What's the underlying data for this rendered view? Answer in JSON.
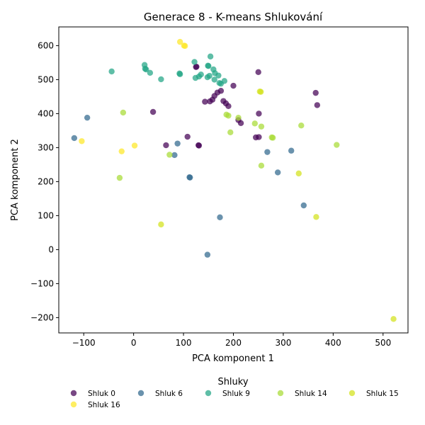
{
  "chart_data": {
    "type": "scatter",
    "title": "Generace 8 - K-means Shlukování",
    "xlabel": "PCA komponent 1",
    "ylabel": "PCA komponent 2",
    "xlim": [
      -150,
      550
    ],
    "ylim": [
      -245,
      655
    ],
    "xticks": [
      -100,
      0,
      100,
      200,
      300,
      400,
      500
    ],
    "yticks": [
      -200,
      -100,
      0,
      100,
      200,
      300,
      400,
      500,
      600
    ],
    "grid": false,
    "legend": {
      "title": "Shluky",
      "placement": "bottom"
    },
    "series": [
      {
        "name": "Shluk 0",
        "color": "#440154",
        "points": [
          [
            125,
            537
          ],
          [
            126,
            538
          ],
          [
            250,
            522
          ],
          [
            200,
            482
          ],
          [
            365,
            461
          ],
          [
            175,
            467
          ],
          [
            168,
            462
          ],
          [
            162,
            452
          ],
          [
            158,
            441
          ],
          [
            153,
            436
          ],
          [
            143,
            435
          ],
          [
            180,
            437
          ],
          [
            185,
            430
          ],
          [
            190,
            422
          ],
          [
            39,
            405
          ],
          [
            368,
            425
          ],
          [
            251,
            400
          ],
          [
            210,
            381
          ],
          [
            215,
            372
          ],
          [
            108,
            332
          ],
          [
            251,
            331
          ],
          [
            245,
            330
          ],
          [
            65,
            307
          ],
          [
            130,
            307
          ],
          [
            131,
            306
          ]
        ]
      },
      {
        "name": "Shluk 6",
        "color": "#31688e",
        "points": [
          [
            -93,
            388
          ],
          [
            -119,
            328
          ],
          [
            88,
            312
          ],
          [
            82,
            278
          ],
          [
            112,
            213
          ],
          [
            113,
            212
          ],
          [
            268,
            287
          ],
          [
            316,
            291
          ],
          [
            289,
            227
          ],
          [
            341,
            130
          ],
          [
            173,
            95
          ],
          [
            148,
            -15
          ]
        ]
      },
      {
        "name": "Shluk 9",
        "color": "#21a585",
        "points": [
          [
            122,
            552
          ],
          [
            154,
            568
          ],
          [
            22,
            543
          ],
          [
            23,
            532
          ],
          [
            25,
            530
          ],
          [
            -44,
            524
          ],
          [
            33,
            520
          ],
          [
            55,
            501
          ],
          [
            92,
            518
          ],
          [
            93,
            516
          ],
          [
            149,
            541
          ],
          [
            150,
            540
          ],
          [
            160,
            530
          ],
          [
            163,
            519
          ],
          [
            170,
            512
          ],
          [
            152,
            511
          ],
          [
            148,
            507
          ],
          [
            135,
            515
          ],
          [
            131,
            509
          ],
          [
            124,
            505
          ],
          [
            172,
            490
          ],
          [
            175,
            488
          ],
          [
            182,
            496
          ],
          [
            162,
            500
          ]
        ]
      },
      {
        "name": "Shluk 14",
        "color": "#a8db34",
        "points": [
          [
            -21,
            403
          ],
          [
            186,
            397
          ],
          [
            190,
            394
          ],
          [
            210,
            388
          ],
          [
            243,
            371
          ],
          [
            256,
            362
          ],
          [
            194,
            345
          ],
          [
            336,
            365
          ],
          [
            277,
            330
          ],
          [
            279,
            329
          ],
          [
            407,
            308
          ],
          [
            72,
            279
          ],
          [
            256,
            247
          ],
          [
            -28,
            211
          ]
        ]
      },
      {
        "name": "Shluk 15",
        "color": "#d3e21b",
        "points": [
          [
            253,
            465
          ],
          [
            255,
            464
          ],
          [
            331,
            224
          ],
          [
            366,
            96
          ],
          [
            55,
            74
          ],
          [
            521,
            -204
          ]
        ]
      },
      {
        "name": "Shluk 16",
        "color": "#fde725",
        "points": [
          [
            93,
            611
          ],
          [
            101,
            600
          ],
          [
            103,
            599
          ],
          [
            -104,
            319
          ],
          [
            2,
            306
          ],
          [
            -24,
            289
          ]
        ]
      }
    ]
  }
}
